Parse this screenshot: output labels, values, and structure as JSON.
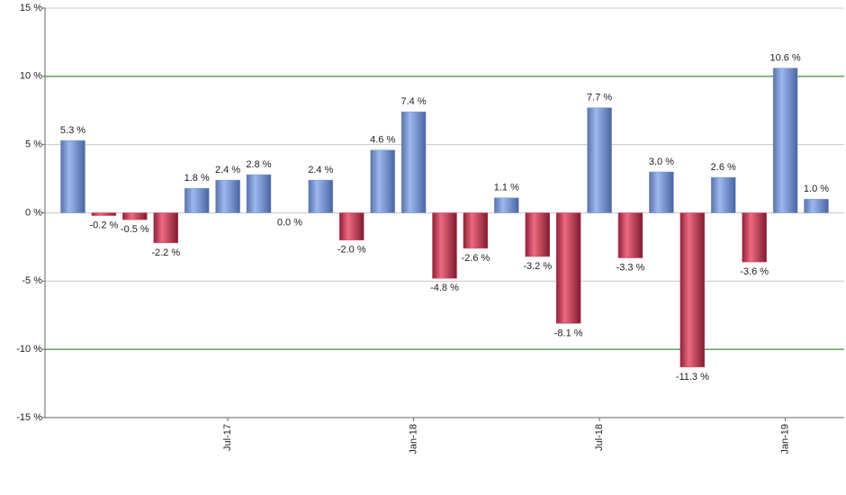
{
  "chart_data": {
    "type": "bar",
    "categories": [
      null,
      null,
      null,
      null,
      null,
      "Jul-17",
      null,
      null,
      null,
      null,
      null,
      "Jan-18",
      null,
      null,
      null,
      null,
      null,
      "Jul-18",
      null,
      null,
      null,
      null,
      null,
      "Jan-19",
      null
    ],
    "values": [
      5.3,
      -0.2,
      -0.5,
      -2.2,
      1.8,
      2.4,
      2.8,
      0.0,
      2.4,
      -2.0,
      4.6,
      7.4,
      -4.8,
      -2.6,
      1.1,
      -3.2,
      -8.1,
      7.7,
      -3.3,
      3.0,
      -11.3,
      2.6,
      -3.6,
      10.6,
      1.0
    ],
    "value_labels": [
      "5.3 %",
      "-0.2 %",
      "-0.5 %",
      "-2.2 %",
      "1.8 %",
      "2.4 %",
      "2.8 %",
      "0.0 %",
      "2.4 %",
      "-2.0 %",
      "4.6 %",
      "7.4 %",
      "-4.8 %",
      "-2.6 %",
      "1.1 %",
      "-3.2 %",
      "-8.1 %",
      "7.7 %",
      "-3.3 %",
      "3.0 %",
      "-11.3 %",
      "2.6 %",
      "-3.6 %",
      "10.6 %",
      "1.0 %"
    ],
    "positive_color": "#7a98dc",
    "negative_color": "#d64a63",
    "ylim": [
      -15,
      15
    ],
    "yticks": [
      {
        "value": -15,
        "label": "-15 %"
      },
      {
        "value": -10,
        "label": "-10 %"
      },
      {
        "value": -5,
        "label": "-5 %"
      },
      {
        "value": 0,
        "label": "0 %"
      },
      {
        "value": 5,
        "label": "5 %"
      },
      {
        "value": 10,
        "label": "10 %"
      },
      {
        "value": 15,
        "label": "15 %"
      }
    ],
    "grid": true,
    "grid_color": "#c8c8c8",
    "reference_lines": [
      {
        "value": 10,
        "color": "#1a7a1a"
      },
      {
        "value": -10,
        "color": "#1a7a1a"
      }
    ]
  }
}
